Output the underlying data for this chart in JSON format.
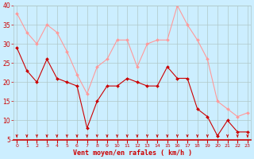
{
  "xlabel": "Vent moyen/en rafales ( km/h )",
  "hours": [
    0,
    1,
    2,
    3,
    4,
    5,
    6,
    7,
    8,
    9,
    10,
    11,
    12,
    13,
    14,
    15,
    16,
    17,
    18,
    19,
    20,
    21,
    22,
    23
  ],
  "vent_moyen": [
    29,
    23,
    20,
    26,
    21,
    20,
    19,
    8,
    15,
    19,
    19,
    21,
    20,
    19,
    19,
    24,
    21,
    21,
    13,
    11,
    6,
    10,
    7,
    7
  ],
  "rafales": [
    38,
    33,
    30,
    35,
    33,
    28,
    22,
    17,
    24,
    26,
    31,
    31,
    24,
    30,
    31,
    31,
    40,
    35,
    31,
    26,
    15,
    13,
    11,
    12
  ],
  "ylim": [
    5,
    40
  ],
  "yticks": [
    5,
    10,
    15,
    20,
    25,
    30,
    35,
    40
  ],
  "bg_color": "#cceeff",
  "grid_color": "#b0c8c8",
  "line_color_moyen": "#cc0000",
  "line_color_rafales": "#ff9999",
  "tick_color": "#cc0000",
  "label_color": "#cc0000",
  "spine_color": "#cc0000"
}
